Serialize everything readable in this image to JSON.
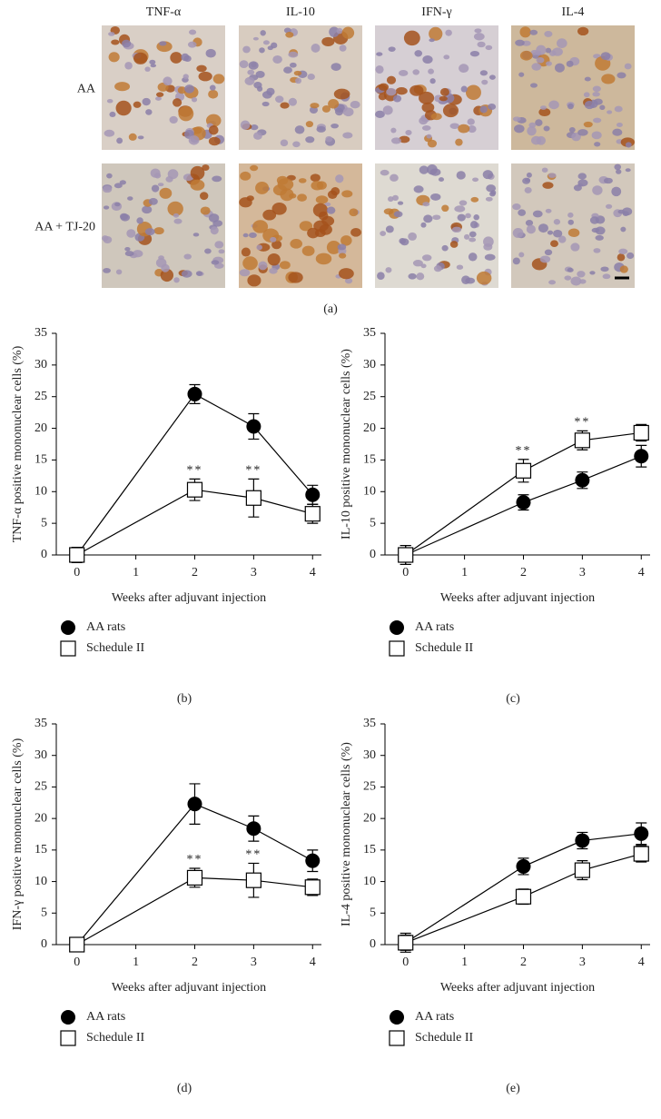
{
  "figure": {
    "panel_a": {
      "columns": [
        "TNF-α",
        "IL-10",
        "IFN-γ",
        "IL-4"
      ],
      "rows": [
        "AA",
        "AA + TJ-20"
      ],
      "label": "(a)"
    }
  },
  "chart_data": [
    {
      "type": "line",
      "panel_label": "(b)",
      "ylabel": "TNF-α positive mononuclear cells (%)",
      "xlabel": "Weeks after adjuvant injection",
      "x": [
        0,
        2,
        3,
        4
      ],
      "xlim": [
        -0.35,
        4.15
      ],
      "xticks": [
        0,
        1,
        2,
        3,
        4
      ],
      "ylim": [
        0,
        35
      ],
      "yticks": [
        0,
        5,
        10,
        15,
        20,
        25,
        30,
        35
      ],
      "series": [
        {
          "name": "AA rats",
          "color": "#000000",
          "marker": "circle",
          "values": [
            0,
            25.4,
            20.3,
            9.5
          ],
          "errors": [
            1,
            1.5,
            2,
            1.5
          ]
        },
        {
          "name": "Schedule II",
          "color": "#000000",
          "marker": "square",
          "values": [
            0,
            10.3,
            9,
            6.5
          ],
          "errors": [
            1.2,
            1.7,
            3,
            1.5
          ],
          "significance": [
            null,
            "**",
            "**",
            null
          ]
        }
      ]
    },
    {
      "type": "line",
      "panel_label": "(c)",
      "ylabel": "IL-10 positive mononuclear cells (%)",
      "xlabel": "Weeks after adjuvant injection",
      "x": [
        0,
        2,
        3,
        4
      ],
      "xlim": [
        -0.35,
        4.15
      ],
      "xticks": [
        0,
        1,
        2,
        3,
        4
      ],
      "ylim": [
        0,
        35
      ],
      "yticks": [
        0,
        5,
        10,
        15,
        20,
        25,
        30,
        35
      ],
      "series": [
        {
          "name": "AA rats",
          "color": "#000000",
          "marker": "circle",
          "values": [
            0,
            8.3,
            11.8,
            15.6
          ],
          "errors": [
            1.5,
            1.2,
            1.3,
            1.7
          ]
        },
        {
          "name": "Schedule II",
          "color": "#000000",
          "marker": "square",
          "values": [
            0,
            13.3,
            18.1,
            19.3
          ],
          "errors": [
            1.5,
            1.8,
            1.5,
            1.3
          ],
          "significance": [
            null,
            "**",
            "**",
            null
          ]
        }
      ]
    },
    {
      "type": "line",
      "panel_label": "(d)",
      "ylabel": "IFN-γ positive mononuclear cells (%)",
      "xlabel": "Weeks after adjuvant injection",
      "x": [
        0,
        2,
        3,
        4
      ],
      "xlim": [
        -0.35,
        4.15
      ],
      "xticks": [
        0,
        1,
        2,
        3,
        4
      ],
      "ylim": [
        0,
        35
      ],
      "yticks": [
        0,
        5,
        10,
        15,
        20,
        25,
        30,
        35
      ],
      "series": [
        {
          "name": "AA rats",
          "color": "#000000",
          "marker": "circle",
          "values": [
            0,
            22.3,
            18.4,
            13.3
          ],
          "errors": [
            1,
            3.2,
            2,
            1.7
          ]
        },
        {
          "name": "Schedule II",
          "color": "#000000",
          "marker": "square",
          "values": [
            0,
            10.6,
            10.2,
            9.1
          ],
          "errors": [
            1,
            1.5,
            2.7,
            1.3
          ],
          "significance": [
            null,
            "**",
            "**",
            null
          ]
        }
      ]
    },
    {
      "type": "line",
      "panel_label": "(e)",
      "ylabel": "IL-4 positive mononuclear cells (%)",
      "xlabel": "Weeks after adjuvant injection",
      "x": [
        0,
        2,
        3,
        4
      ],
      "xlim": [
        -0.35,
        4.15
      ],
      "xticks": [
        0,
        1,
        2,
        3,
        4
      ],
      "ylim": [
        0,
        35
      ],
      "yticks": [
        0,
        5,
        10,
        15,
        20,
        25,
        30,
        35
      ],
      "series": [
        {
          "name": "AA rats",
          "color": "#000000",
          "marker": "circle",
          "values": [
            0.3,
            12.4,
            16.5,
            17.6
          ],
          "errors": [
            1.5,
            1.3,
            1.3,
            1.7
          ]
        },
        {
          "name": "Schedule II",
          "color": "#000000",
          "marker": "square",
          "values": [
            0.3,
            7.6,
            11.8,
            14.4
          ],
          "errors": [
            1.2,
            1.2,
            1.5,
            1.3
          ]
        }
      ]
    }
  ]
}
